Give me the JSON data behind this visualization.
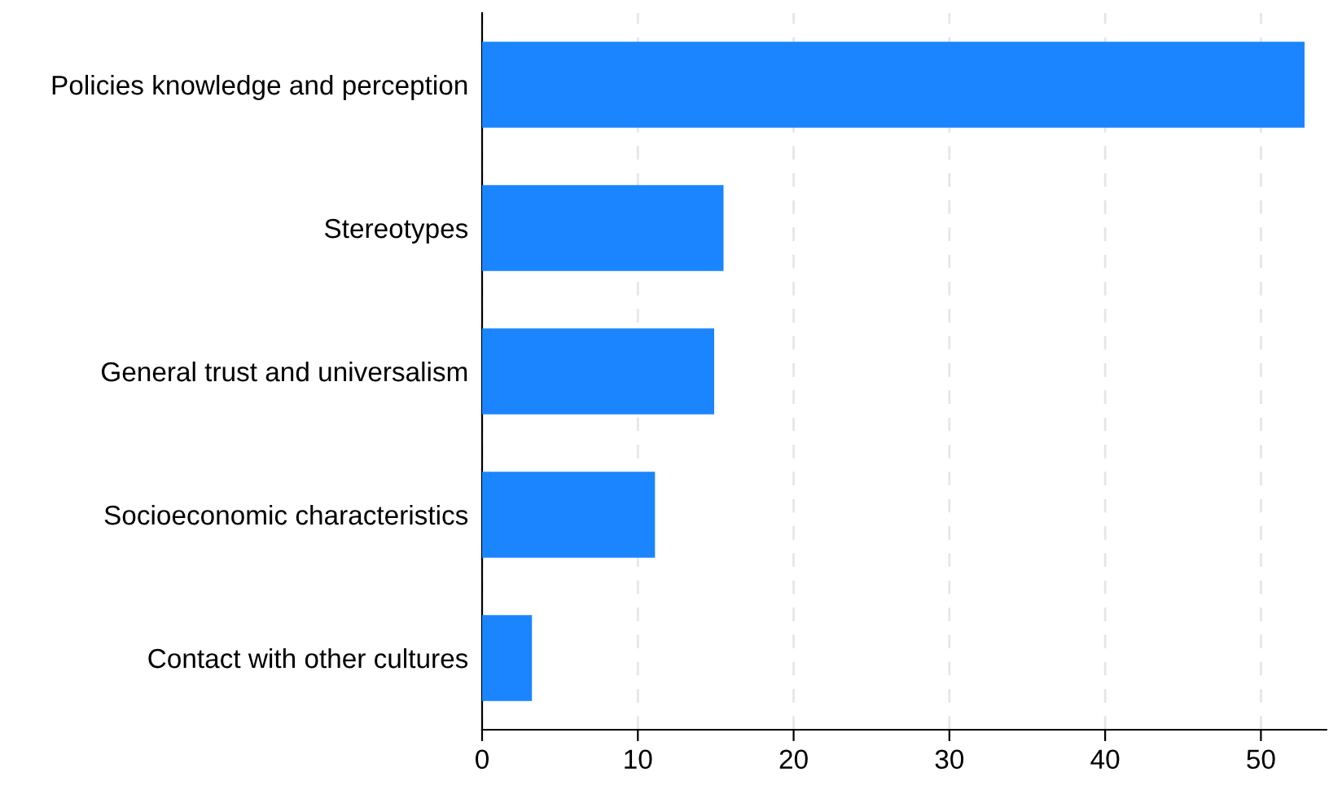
{
  "chart_data": {
    "type": "bar",
    "orientation": "horizontal",
    "categories": [
      "Policies knowledge and perception",
      "Stereotypes",
      "General trust and universalism",
      "Socioeconomic characteristics",
      "Contact with other cultures"
    ],
    "values": [
      52.8,
      15.5,
      14.9,
      11.1,
      3.2
    ],
    "color": "#1a85ff",
    "xlim": [
      0,
      54.2
    ],
    "xticks": [
      0,
      10,
      20,
      30,
      40,
      50
    ],
    "grid": "x"
  }
}
